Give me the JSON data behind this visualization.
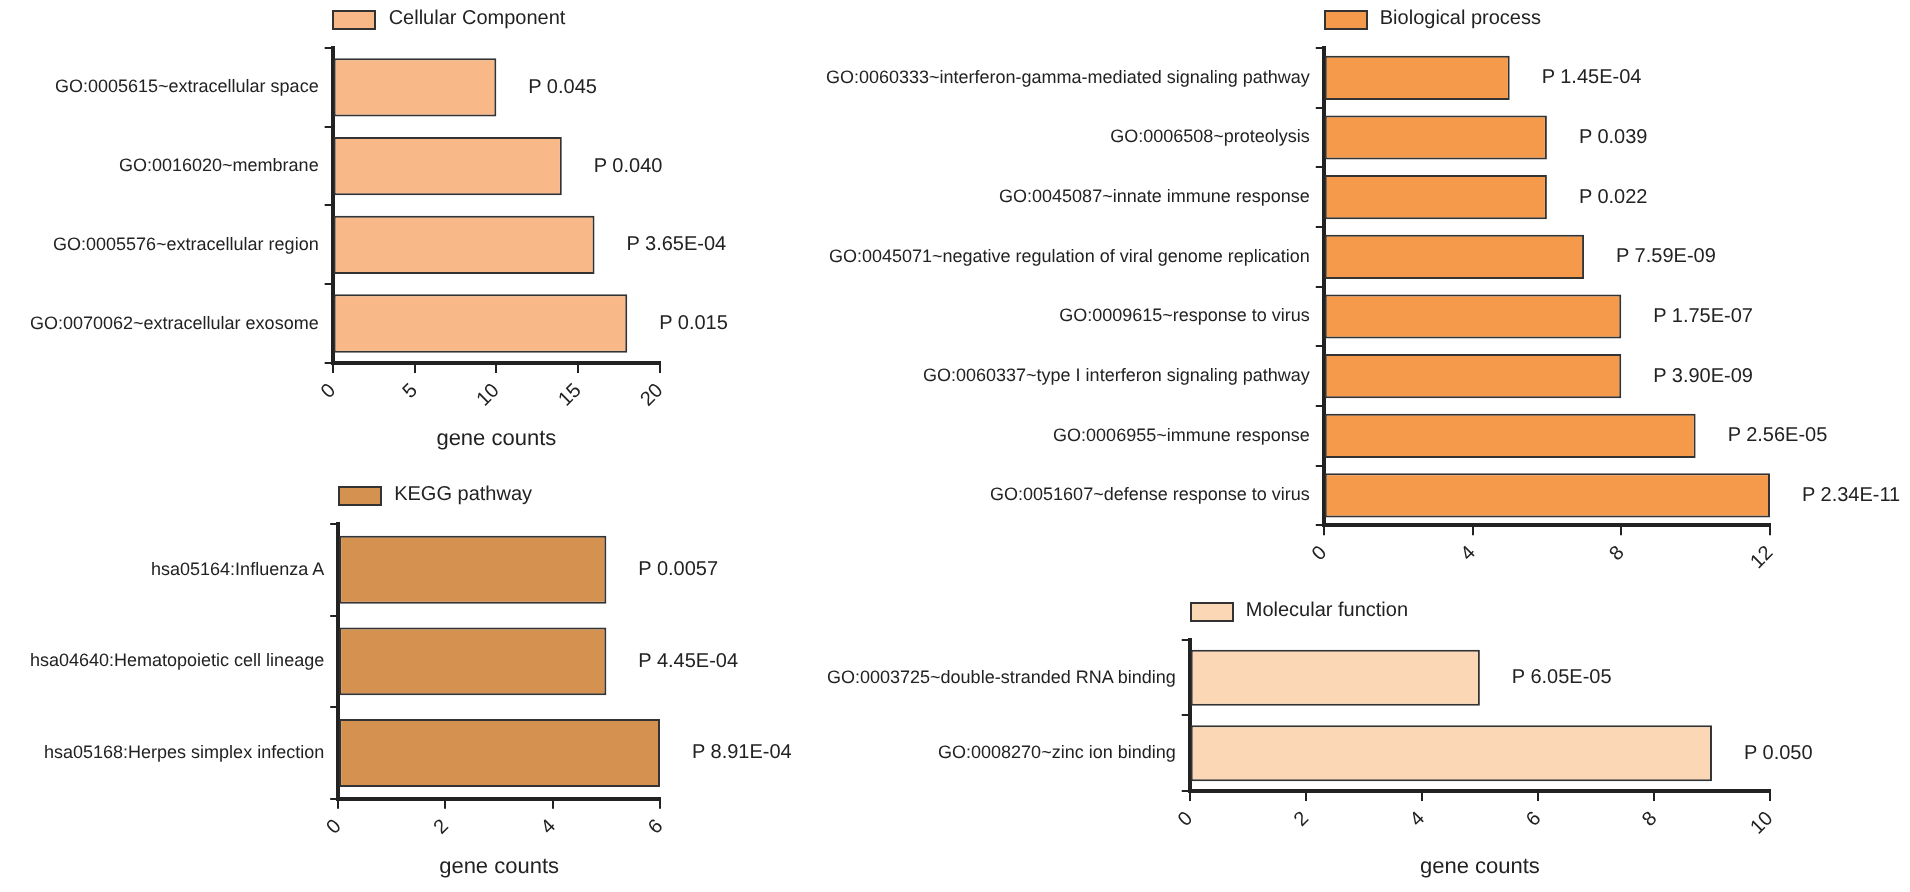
{
  "chart_data": [
    {
      "type": "bar",
      "orientation": "horizontal",
      "legend": "top",
      "grid": false,
      "xlabel": "gene counts",
      "xlim": [
        0,
        20
      ],
      "xticks": [
        0,
        5,
        10,
        15,
        20
      ],
      "categories": [
        "GO:0005615~extracellular space",
        "GO:0016020~membrane",
        "GO:0005576~extracellular region",
        "GO:0070062~extracellular exosome"
      ],
      "series": [
        {
          "name": "Cellular Component",
          "color": "#f8b887",
          "values": [
            10,
            14,
            16,
            18
          ],
          "value_labels": [
            "P 0.045",
            "P 0.040",
            "P 3.65E-04",
            "P 0.015"
          ]
        }
      ]
    },
    {
      "type": "bar",
      "orientation": "horizontal",
      "legend": "top",
      "grid": false,
      "xlim": [
        0,
        12
      ],
      "xticks": [
        0,
        4,
        8,
        12
      ],
      "categories": [
        "GO:0060333~interferon-gamma-mediated signaling pathway",
        "GO:0006508~proteolysis",
        "GO:0045087~innate immune response",
        "GO:0045071~negative regulation of viral genome replication",
        "GO:0009615~response to virus",
        "GO:0060337~type I interferon signaling pathway",
        "GO:0006955~immune response",
        "GO:0051607~defense response to virus"
      ],
      "series": [
        {
          "name": "Biological process",
          "color": "#f59a4a",
          "values": [
            5,
            6,
            6,
            7,
            8,
            8,
            10,
            12
          ],
          "value_labels": [
            "P 1.45E-04",
            "P 0.039",
            "P 0.022",
            "P 7.59E-09",
            "P 1.75E-07",
            "P 3.90E-09",
            "P 2.56E-05",
            "P 2.34E-11"
          ]
        }
      ]
    },
    {
      "type": "bar",
      "orientation": "horizontal",
      "legend": "top",
      "grid": false,
      "xlabel": "gene counts",
      "xlim": [
        0,
        6
      ],
      "xticks": [
        0,
        2,
        4,
        6
      ],
      "categories": [
        "hsa05164:Influenza A",
        "hsa04640:Hematopoietic cell lineage",
        "hsa05168:Herpes simplex infection"
      ],
      "series": [
        {
          "name": "KEGG pathway",
          "color": "#d4914f",
          "values": [
            5,
            5,
            6
          ],
          "value_labels": [
            "P 0.0057",
            "P 4.45E-04",
            "P 8.91E-04"
          ]
        }
      ]
    },
    {
      "type": "bar",
      "orientation": "horizontal",
      "legend": "top",
      "grid": false,
      "xlabel": "gene counts",
      "xlim": [
        0,
        10
      ],
      "xticks": [
        0,
        2,
        4,
        6,
        8,
        10
      ],
      "categories": [
        "GO:0003725~double-stranded RNA binding",
        "GO:0008270~zinc ion binding"
      ],
      "series": [
        {
          "name": "Molecular function",
          "color": "#fbd7b5",
          "values": [
            5,
            9
          ],
          "value_labels": [
            "P 6.05E-05",
            "P 0.050"
          ]
        }
      ]
    }
  ]
}
